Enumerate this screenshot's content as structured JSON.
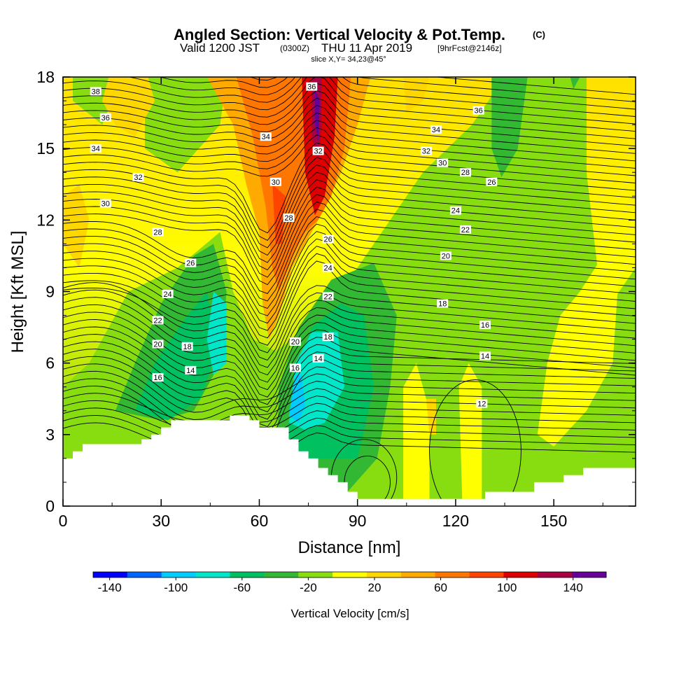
{
  "chart_data": {
    "type": "heatmap",
    "title": "Angled Section: Vertical Velocity & Pot.Temp.",
    "title_unit": "(C)",
    "subtitle_parts": [
      "Valid 1200 JST",
      "(0300Z)",
      "THU 11 Apr 2019",
      "[9hrFcst@2146z]"
    ],
    "subtitle2": "slice X,Y= 34,23@45°",
    "xlabel": "Distance [nm]",
    "ylabel": "Height [Kft MSL]",
    "xlim": [
      0,
      175
    ],
    "ylim": [
      0,
      18
    ],
    "xticks": [
      "0",
      "30",
      "60",
      "90",
      "120",
      "150"
    ],
    "yticks": [
      "0",
      "3",
      "6",
      "9",
      "12",
      "15",
      "18"
    ],
    "colorbar": {
      "label": "Vertical Velocity [cm/s]",
      "tick_labels": [
        "-140",
        "-100",
        "-60",
        "-20",
        "20",
        "60",
        "100",
        "140"
      ],
      "tick_values": [
        -140,
        -100,
        -60,
        -20,
        20,
        60,
        100,
        140
      ],
      "bounds": [
        -150,
        160
      ],
      "colors": [
        "#0000ff",
        "#0066ff",
        "#00ccff",
        "#00e6c8",
        "#00c060",
        "#33b833",
        "#88dd11",
        "#ffff00",
        "#ffd700",
        "#ffaa00",
        "#ff7700",
        "#ff4400",
        "#dd0000",
        "#aa0044",
        "#660099"
      ]
    },
    "contour_label": "Potential temperature (C)",
    "contour_labels": [
      {
        "v": "38",
        "x": 10,
        "y": 17.4
      },
      {
        "v": "36",
        "x": 13,
        "y": 16.3
      },
      {
        "v": "34",
        "x": 10,
        "y": 15.0
      },
      {
        "v": "32",
        "x": 23,
        "y": 13.8
      },
      {
        "v": "30",
        "x": 13,
        "y": 12.7
      },
      {
        "v": "28",
        "x": 29,
        "y": 11.5
      },
      {
        "v": "26",
        "x": 39,
        "y": 10.2
      },
      {
        "v": "24",
        "x": 32,
        "y": 8.9
      },
      {
        "v": "22",
        "x": 29,
        "y": 7.8
      },
      {
        "v": "20",
        "x": 29,
        "y": 6.8
      },
      {
        "v": "18",
        "x": 38,
        "y": 6.7
      },
      {
        "v": "16",
        "x": 29,
        "y": 5.4
      },
      {
        "v": "14",
        "x": 39,
        "y": 5.7
      },
      {
        "v": "36",
        "x": 76,
        "y": 17.6
      },
      {
        "v": "34",
        "x": 62,
        "y": 15.5
      },
      {
        "v": "32",
        "x": 78,
        "y": 14.9
      },
      {
        "v": "30",
        "x": 65,
        "y": 13.6
      },
      {
        "v": "28",
        "x": 69,
        "y": 12.1
      },
      {
        "v": "26",
        "x": 81,
        "y": 11.2
      },
      {
        "v": "24",
        "x": 81,
        "y": 10.0
      },
      {
        "v": "22",
        "x": 81,
        "y": 8.8
      },
      {
        "v": "20",
        "x": 71,
        "y": 6.9
      },
      {
        "v": "18",
        "x": 81,
        "y": 7.1
      },
      {
        "v": "16",
        "x": 71,
        "y": 5.8
      },
      {
        "v": "14",
        "x": 78,
        "y": 6.2
      },
      {
        "v": "36",
        "x": 127,
        "y": 16.6
      },
      {
        "v": "34",
        "x": 114,
        "y": 15.8
      },
      {
        "v": "32",
        "x": 111,
        "y": 14.9
      },
      {
        "v": "30",
        "x": 116,
        "y": 14.4
      },
      {
        "v": "28",
        "x": 123,
        "y": 14.0
      },
      {
        "v": "26",
        "x": 131,
        "y": 13.6
      },
      {
        "v": "24",
        "x": 120,
        "y": 12.4
      },
      {
        "v": "22",
        "x": 123,
        "y": 11.6
      },
      {
        "v": "20",
        "x": 117,
        "y": 10.5
      },
      {
        "v": "18",
        "x": 116,
        "y": 8.5
      },
      {
        "v": "16",
        "x": 129,
        "y": 7.6
      },
      {
        "v": "14",
        "x": 129,
        "y": 6.3
      },
      {
        "v": "12",
        "x": 128,
        "y": 4.3
      }
    ],
    "terrain": [
      [
        0,
        2.0
      ],
      [
        3,
        2.0
      ],
      [
        3,
        2.3
      ],
      [
        6,
        2.3
      ],
      [
        6,
        2.6
      ],
      [
        9,
        2.6
      ],
      [
        9,
        2.6
      ],
      [
        15,
        2.6
      ],
      [
        18,
        2.6
      ],
      [
        24,
        2.6
      ],
      [
        24,
        2.8
      ],
      [
        27,
        2.8
      ],
      [
        27,
        3.0
      ],
      [
        30,
        3.0
      ],
      [
        30,
        3.3
      ],
      [
        33,
        3.3
      ],
      [
        33,
        3.6
      ],
      [
        36,
        3.6
      ],
      [
        51,
        3.6
      ],
      [
        51,
        3.8
      ],
      [
        57,
        3.8
      ],
      [
        57,
        3.6
      ],
      [
        60,
        3.6
      ],
      [
        60,
        3.3
      ],
      [
        69,
        3.3
      ],
      [
        69,
        2.8
      ],
      [
        72,
        2.8
      ],
      [
        72,
        2.3
      ],
      [
        75,
        2.3
      ],
      [
        75,
        2.0
      ],
      [
        78,
        2.0
      ],
      [
        78,
        1.6
      ],
      [
        81,
        1.6
      ],
      [
        81,
        1.3
      ],
      [
        84,
        1.3
      ],
      [
        84,
        1.0
      ],
      [
        87,
        1.0
      ],
      [
        87,
        0.6
      ],
      [
        90,
        0.6
      ],
      [
        90,
        0.3
      ],
      [
        129,
        0.3
      ],
      [
        129,
        0.6
      ],
      [
        144,
        0.6
      ],
      [
        144,
        1.0
      ],
      [
        153,
        1.0
      ],
      [
        153,
        1.3
      ],
      [
        159,
        1.3
      ],
      [
        159,
        1.6
      ],
      [
        175,
        1.6
      ]
    ]
  }
}
